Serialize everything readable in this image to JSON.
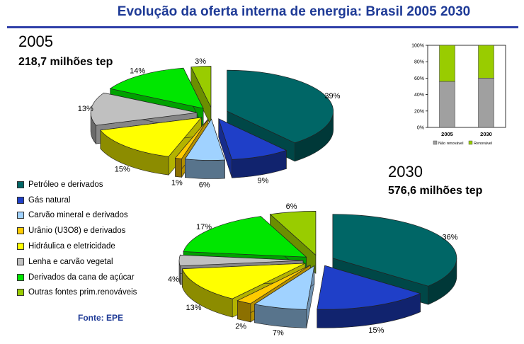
{
  "page": {
    "title": "Evolução da oferta interna de energia: Brasil 2005 2030",
    "source": "Fonte: EPE"
  },
  "legend": [
    {
      "label": "Petróleo e derivados",
      "color": "#006666"
    },
    {
      "label": "Gás natural",
      "color": "#1f3fc8"
    },
    {
      "label": "Carvão mineral e derivados",
      "color": "#a0d2ff"
    },
    {
      "label": "Urânio (U3O8) e derivados",
      "color": "#ffcc00"
    },
    {
      "label": "Hidráulica e eletricidade",
      "color": "#ffff00"
    },
    {
      "label": "Lenha e carvão vegetal",
      "color": "#c0c0c0"
    },
    {
      "label": "Derivados da cana de açúcar",
      "color": "#00e600"
    },
    {
      "label": "Outras fontes prim.renováveis",
      "color": "#99cc00"
    }
  ],
  "chart_data": [
    {
      "type": "pie",
      "year": "2005",
      "total": "218,7 milhões tep",
      "categories": [
        "Petróleo e derivados",
        "Gás natural",
        "Carvão mineral e derivados",
        "Urânio (U3O8) e derivados",
        "Hidráulica e eletricidade",
        "Lenha e carvão vegetal",
        "Derivados da cana de açúcar",
        "Outras fontes prim.renováveis"
      ],
      "values": [
        39,
        9,
        6,
        1,
        15,
        13,
        14,
        3
      ],
      "labels": [
        "39%",
        "9%",
        "6%",
        "1%",
        "15%",
        "13%",
        "14%",
        "3%"
      ]
    },
    {
      "type": "pie",
      "year": "2030",
      "total": "576,6 milhões tep",
      "categories": [
        "Petróleo e derivados",
        "Gás natural",
        "Carvão mineral e derivados",
        "Urânio (U3O8) e derivados",
        "Hidráulica e eletricidade",
        "Lenha e carvão vegetal",
        "Derivados da cana de açúcar",
        "Outras fontes prim.renováveis"
      ],
      "values": [
        36,
        15,
        7,
        2,
        13,
        4,
        17,
        6
      ],
      "labels": [
        "36%",
        "15%",
        "7%",
        "2%",
        "13%",
        "4%",
        "17%",
        "6%"
      ]
    },
    {
      "type": "bar",
      "stacked": true,
      "categories": [
        "2005",
        "2030"
      ],
      "series": [
        {
          "name": "Não renovável",
          "values": [
            56,
            60
          ],
          "color": "#a0a0a0"
        },
        {
          "name": "Renovável",
          "values": [
            44,
            40
          ],
          "color": "#99cc00"
        }
      ],
      "ylim": [
        0,
        100
      ],
      "yticks": [
        "0%",
        "20%",
        "40%",
        "60%",
        "80%",
        "100%"
      ]
    }
  ]
}
